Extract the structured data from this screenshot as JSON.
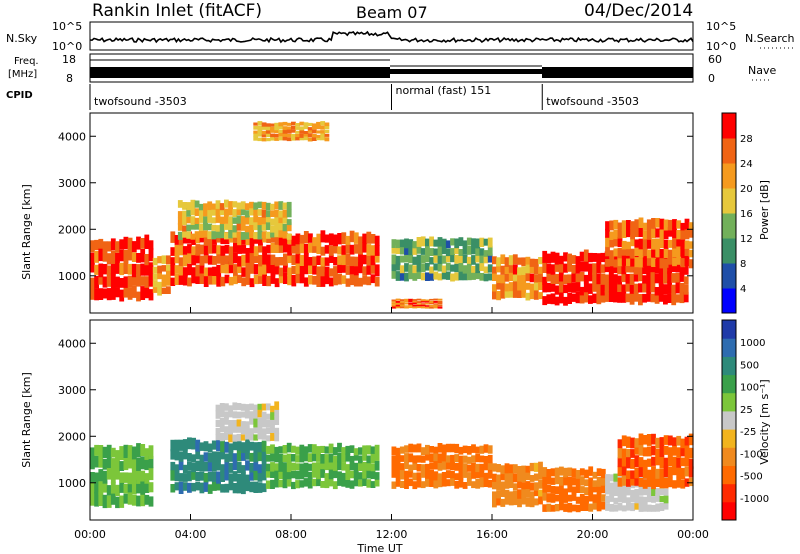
{
  "header": {
    "station": "Rankin Inlet (fitACF)",
    "beam": "Beam 07",
    "date": "04/Dec/2014"
  },
  "rows": {
    "nsky_label": "N.Sky",
    "nsearch_label": "N.Search",
    "freq_label_1": "Freq.",
    "freq_label_2": "[MHz]",
    "nave_label": "Nave",
    "cpid_label": "CPID",
    "nsky_ticks": [
      "10^5",
      "10^0"
    ],
    "nsearch_ticks": [
      "10^5",
      "10^0"
    ],
    "freq_ticks": [
      "18",
      "8"
    ],
    "nave_ticks": [
      "60",
      "0"
    ]
  },
  "cpid_segments": [
    {
      "label": "twofsound  -3503",
      "start_hr": 0,
      "end_hr": 12
    },
    {
      "label": "normal (fast)  151",
      "start_hr": 12,
      "end_hr": 18
    },
    {
      "label": "twofsound  -3503",
      "start_hr": 18,
      "end_hr": 24
    }
  ],
  "colors": {
    "power_scale": [
      "#0000ff",
      "#1f4fa8",
      "#3a8f66",
      "#72b05a",
      "#e6c83c",
      "#f59a1e",
      "#f06414",
      "#ff0000"
    ],
    "velocity_scale": [
      "#1f3aa8",
      "#2e6cb0",
      "#2e8a7a",
      "#3aa04a",
      "#7cc63a",
      "#c8c8c8",
      "#f2b41e",
      "#f08a1e",
      "#ff6a00",
      "#ff2a00",
      "#ff0000"
    ]
  },
  "chart_data": [
    {
      "type": "heatmap",
      "panel": "power",
      "ylabel": "Slant Range [km]",
      "xlabel": "",
      "ylim": [
        200,
        4500
      ],
      "yticks": [
        "1000",
        "2000",
        "3000",
        "4000"
      ],
      "colorbar_label": "Power [dB]",
      "colorbar_ticks": [
        "4",
        "8",
        "12",
        "16",
        "20",
        "24",
        "28"
      ],
      "clim": [
        0,
        30
      ],
      "bands": [
        {
          "t0": 0.0,
          "t1": 2.5,
          "r0": 500,
          "r1": 1800,
          "v": 27
        },
        {
          "t0": 2.5,
          "t1": 3.2,
          "r0": 600,
          "r1": 1400,
          "v": 20
        },
        {
          "t0": 3.2,
          "t1": 11.5,
          "r0": 800,
          "r1": 1900,
          "v": 26
        },
        {
          "t0": 3.5,
          "t1": 8.0,
          "r0": 1800,
          "r1": 2600,
          "v": 18
        },
        {
          "t0": 6.5,
          "t1": 9.5,
          "r0": 3900,
          "r1": 4300,
          "v": 20
        },
        {
          "t0": 12.0,
          "t1": 16.0,
          "r0": 900,
          "r1": 1800,
          "v": 12
        },
        {
          "t0": 12.0,
          "t1": 14.0,
          "r0": 300,
          "r1": 500,
          "v": 24
        },
        {
          "t0": 16.0,
          "t1": 18.0,
          "r0": 500,
          "r1": 1400,
          "v": 22
        },
        {
          "t0": 18.0,
          "t1": 23.8,
          "r0": 400,
          "r1": 1500,
          "v": 28
        },
        {
          "t0": 20.5,
          "t1": 24.0,
          "r0": 1200,
          "r1": 2200,
          "v": 24
        }
      ]
    },
    {
      "type": "heatmap",
      "panel": "velocity",
      "ylabel": "Slant Range [km]",
      "xlabel": "Time UT",
      "ylim": [
        200,
        4500
      ],
      "yticks": [
        "1000",
        "2000",
        "3000",
        "4000"
      ],
      "xticks": [
        "00:00",
        "04:00",
        "08:00",
        "12:00",
        "16:00",
        "20:00",
        "00:00"
      ],
      "colorbar_label": "Velocity [m s⁻¹]",
      "colorbar_ticks": [
        "1000",
        "500",
        "100",
        "25",
        "-25",
        "-100",
        "-500",
        "-1000"
      ],
      "bands": [
        {
          "t0": 0.0,
          "t1": 2.5,
          "r0": 500,
          "r1": 1800,
          "v": 100
        },
        {
          "t0": 3.2,
          "t1": 7.0,
          "r0": 800,
          "r1": 1900,
          "v": 400
        },
        {
          "t0": 7.0,
          "t1": 11.5,
          "r0": 900,
          "r1": 1800,
          "v": 120
        },
        {
          "t0": 5.0,
          "t1": 7.5,
          "r0": 1900,
          "r1": 2700,
          "v": 0
        },
        {
          "t0": 12.0,
          "t1": 16.0,
          "r0": 900,
          "r1": 1800,
          "v": -300
        },
        {
          "t0": 16.0,
          "t1": 18.0,
          "r0": 500,
          "r1": 1400,
          "v": -200
        },
        {
          "t0": 18.0,
          "t1": 20.5,
          "r0": 400,
          "r1": 1300,
          "v": -300
        },
        {
          "t0": 20.5,
          "t1": 23.0,
          "r0": 400,
          "r1": 1200,
          "v": 0
        },
        {
          "t0": 21.0,
          "t1": 24.0,
          "r0": 900,
          "r1": 2000,
          "v": -400
        }
      ]
    }
  ]
}
